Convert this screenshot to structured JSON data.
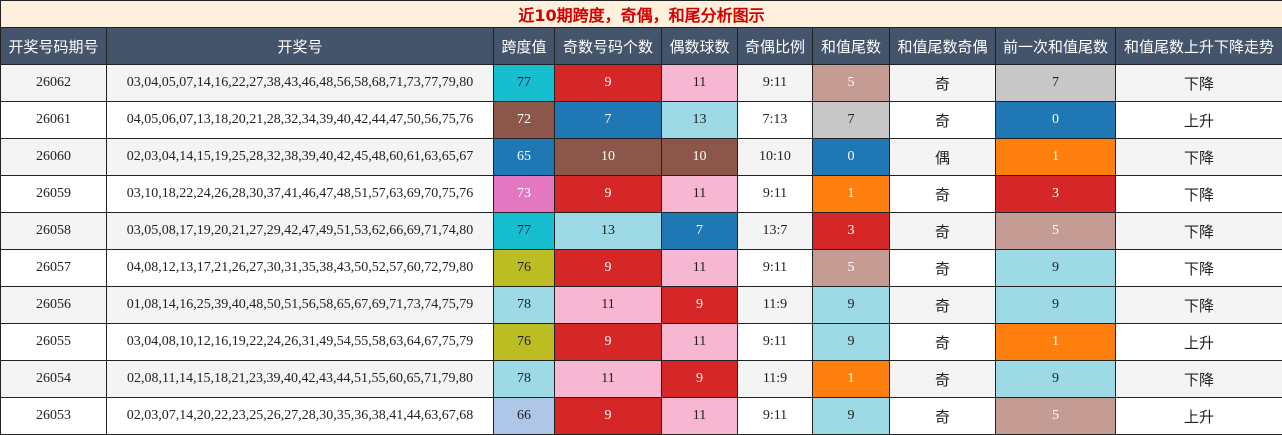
{
  "table": {
    "title": "近10期跨度，奇偶，和尾分析图示",
    "header": [
      "开奖号码期号",
      "开奖号",
      "跨度值",
      "奇数号码个数",
      "偶数球数",
      "奇偶比例",
      "和值尾数",
      "和值尾数奇偶",
      "前一次和值尾数",
      "和值尾数上升下降走势"
    ],
    "rows": [
      [
        26062,
        "03,04,05,07,14,16,22,27,38,43,46,48,56,58,68,71,73,77,79,80",
        77,
        9,
        11,
        "9:11",
        5,
        "奇",
        7,
        "下降"
      ],
      [
        26061,
        "04,05,06,07,13,18,20,21,28,32,34,39,40,42,44,47,50,56,75,76",
        72,
        7,
        13,
        "7:13",
        7,
        "奇",
        0,
        "上升"
      ],
      [
        26060,
        "02,03,04,14,15,19,25,28,32,38,39,40,42,45,48,60,61,63,65,67",
        65,
        10,
        10,
        "10:10",
        0,
        "偶",
        1,
        "下降"
      ],
      [
        26059,
        "03,10,18,22,24,26,28,30,37,41,46,47,48,51,57,63,69,70,75,76",
        73,
        9,
        11,
        "9:11",
        1,
        "奇",
        3,
        "下降"
      ],
      [
        26058,
        "03,05,08,17,19,20,21,27,29,42,47,49,51,53,62,66,69,71,74,80",
        77,
        13,
        7,
        "13:7",
        3,
        "奇",
        5,
        "下降"
      ],
      [
        26057,
        "04,08,12,13,17,21,26,27,30,31,35,38,43,50,52,57,60,72,79,80",
        76,
        9,
        11,
        "9:11",
        5,
        "奇",
        9,
        "下降"
      ],
      [
        26056,
        "01,08,14,16,25,39,40,48,50,51,56,58,65,67,69,71,73,74,75,79",
        78,
        11,
        9,
        "11:9",
        9,
        "奇",
        9,
        "下降"
      ],
      [
        26055,
        "03,04,08,10,12,16,19,22,24,26,31,49,54,55,58,63,64,67,75,79",
        76,
        9,
        11,
        "9:11",
        9,
        "奇",
        1,
        "上升"
      ],
      [
        26054,
        "02,08,11,14,15,18,21,23,39,40,42,43,44,51,55,60,65,71,79,80",
        78,
        11,
        9,
        "11:9",
        1,
        "奇",
        9,
        "下降"
      ],
      [
        26053,
        "02,03,07,14,20,22,23,25,26,27,28,30,35,36,38,41,44,63,67,68",
        66,
        9,
        11,
        "9:11",
        9,
        "奇",
        5,
        "上升"
      ]
    ],
    "cell_colors": [
      [
        null,
        null,
        "#17becf",
        "#d62728",
        "#f7b6d2",
        null,
        "#c49c94",
        null,
        "#c7c7c7",
        null
      ],
      [
        null,
        null,
        "#8c564b",
        "#1f77b4",
        "#9edae5",
        null,
        "#c7c7c7",
        null,
        "#1f77b4",
        null
      ],
      [
        null,
        null,
        "#1f77b4",
        "#8c564b",
        "#8c564b",
        null,
        "#1f77b4",
        null,
        "#ff7f0e",
        null
      ],
      [
        null,
        null,
        "#e377c2",
        "#d62728",
        "#f7b6d2",
        null,
        "#ff7f0e",
        null,
        "#d62728",
        null
      ],
      [
        null,
        null,
        "#17becf",
        "#9edae5",
        "#1f77b4",
        null,
        "#d62728",
        null,
        "#c49c94",
        null
      ],
      [
        null,
        null,
        "#bcbd22",
        "#d62728",
        "#f7b6d2",
        null,
        "#c49c94",
        null,
        "#9edae5",
        null
      ],
      [
        null,
        null,
        "#9edae5",
        "#f7b6d2",
        "#d62728",
        null,
        "#9edae5",
        null,
        "#9edae5",
        null
      ],
      [
        null,
        null,
        "#bcbd22",
        "#d62728",
        "#f7b6d2",
        null,
        "#9edae5",
        null,
        "#ff7f0e",
        null
      ],
      [
        null,
        null,
        "#9edae5",
        "#f7b6d2",
        "#d62728",
        null,
        "#ff7f0e",
        null,
        "#9edae5",
        null
      ],
      [
        null,
        null,
        "#aec7e8",
        "#d62728",
        "#f7b6d2",
        null,
        "#9edae5",
        null,
        "#c49c94",
        null
      ]
    ]
  }
}
